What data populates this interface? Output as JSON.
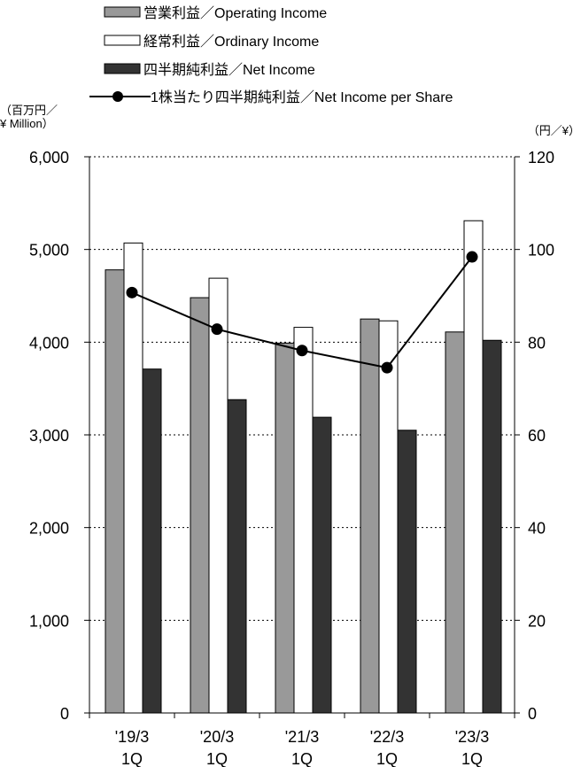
{
  "chart_data": {
    "type": "bar",
    "categories": [
      "'19/3 1Q",
      "'20/3 1Q",
      "'21/3 1Q",
      "'22/3 1Q",
      "'23/3 1Q"
    ],
    "category_lines": [
      [
        "'19/3",
        "1Q"
      ],
      [
        "'20/3",
        "1Q"
      ],
      [
        "'21/3",
        "1Q"
      ],
      [
        "'22/3",
        "1Q"
      ],
      [
        "'23/3",
        "1Q"
      ]
    ],
    "series": [
      {
        "name": "営業利益／Operating Income",
        "type": "bar",
        "axis": "left",
        "color": "#999999",
        "values": [
          4780,
          4480,
          3990,
          4250,
          4110
        ]
      },
      {
        "name": "経常利益／Ordinary Income",
        "type": "bar",
        "axis": "left",
        "color": "#ffffff",
        "values": [
          5070,
          4690,
          4160,
          4230,
          5310
        ]
      },
      {
        "name": "四半期純利益／Net Income",
        "type": "bar",
        "axis": "left",
        "color": "#333333",
        "values": [
          3710,
          3380,
          3190,
          3050,
          4020
        ]
      },
      {
        "name": "1株当たり四半期純利益／Net Income per Share",
        "type": "line",
        "axis": "right",
        "color": "#000000",
        "values": [
          90.7,
          82.8,
          78.2,
          74.5,
          98.4
        ]
      }
    ],
    "y_left": {
      "unit_line1": "（百万円／",
      "unit_line2": "¥ Million）",
      "min": 0,
      "max": 6000,
      "ticks": [
        0,
        1000,
        2000,
        3000,
        4000,
        5000,
        6000
      ],
      "tick_labels": [
        "0",
        "1,000",
        "2,000",
        "3,000",
        "4,000",
        "5,000",
        "6,000"
      ]
    },
    "y_right": {
      "unit": "（円／¥）",
      "min": 0,
      "max": 120,
      "ticks": [
        0,
        20,
        40,
        60,
        80,
        100,
        120
      ],
      "tick_labels": [
        "0",
        "20",
        "40",
        "60",
        "80",
        "100",
        "120"
      ]
    },
    "grid": "dotted horizontal",
    "legend_position": "top-left"
  }
}
